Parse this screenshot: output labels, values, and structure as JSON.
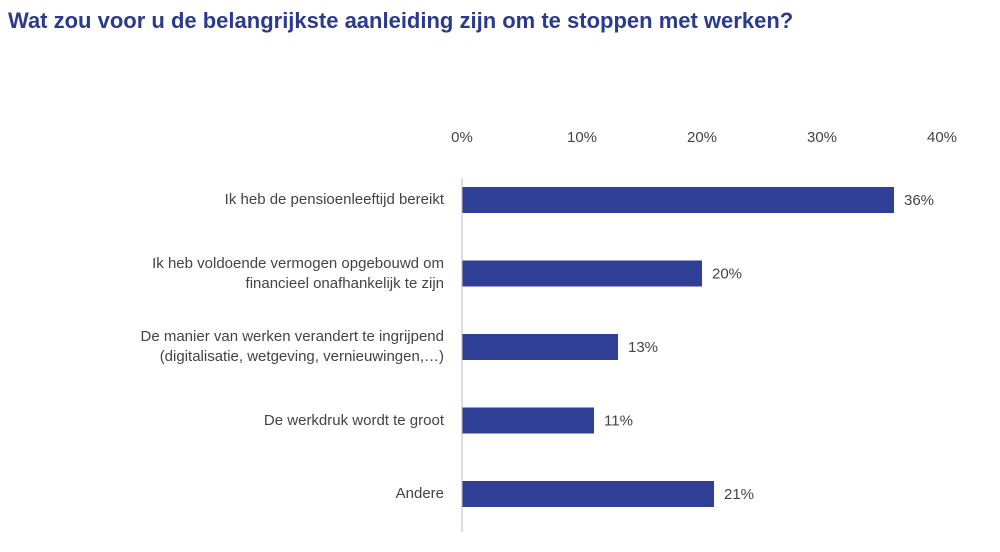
{
  "chart_data": {
    "type": "bar",
    "orientation": "horizontal",
    "title": "Wat zou voor u de belangrijkste aanleiding zijn om te stoppen met werken?",
    "categories": [
      "Ik heb de pensioenleeftijd bereikt",
      "Ik heb voldoende vermogen opgebouwd om\nfinancieel onafhankelijk te zijn",
      "De manier van werken verandert te ingrijpend\n(digitalisatie, wetgeving, vernieuwingen,…)",
      "De werkdruk wordt te groot",
      "Andere"
    ],
    "values": [
      36,
      20,
      13,
      11,
      21
    ],
    "value_labels": [
      "36%",
      "20%",
      "13%",
      "11%",
      "21%"
    ],
    "color": "#2e3f95",
    "xlim": [
      0,
      40
    ],
    "xticks": [
      {
        "value": 0,
        "label": "0%"
      },
      {
        "value": 10,
        "label": "10%"
      },
      {
        "value": 20,
        "label": "20%"
      },
      {
        "value": 30,
        "label": "30%"
      },
      {
        "value": 40,
        "label": "40%"
      }
    ]
  }
}
